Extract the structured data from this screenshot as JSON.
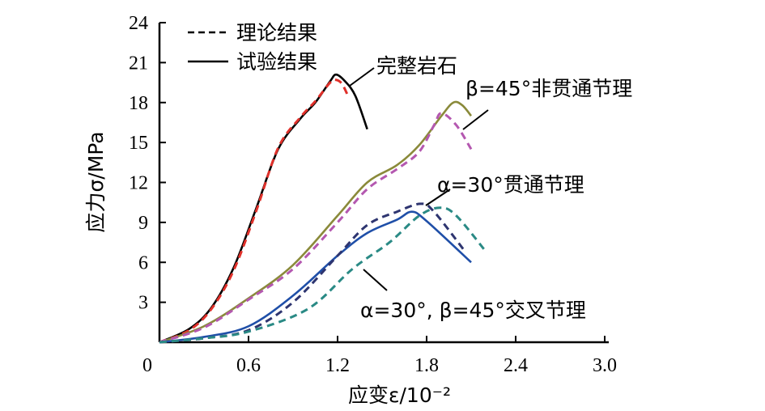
{
  "chart_data": {
    "type": "line",
    "xlabel": "应变ε/10⁻²",
    "ylabel": "应力σ/MPa",
    "xlim": [
      0,
      3.0
    ],
    "ylim": [
      0,
      24
    ],
    "xticks": [
      "0",
      "0.6",
      "1.2",
      "1.8",
      "2.4",
      "3.0"
    ],
    "yticks": [
      "3",
      "6",
      "9",
      "12",
      "15",
      "18",
      "21",
      "24"
    ],
    "grid": false,
    "legend": {
      "position": "top-left",
      "entries": [
        {
          "label": "理论结果",
          "style": "dashed"
        },
        {
          "label": "试验结果",
          "style": "solid"
        }
      ]
    },
    "annotations": [
      "完整岩石",
      "β=45°非贯通节理",
      "α=30°贯通节理",
      "α=30°, β=45°交叉节理"
    ],
    "series": [
      {
        "group": "完整岩石",
        "kind": "试验结果",
        "color": "#000000",
        "dashed": false,
        "x": [
          0,
          0.2,
          0.35,
          0.5,
          0.65,
          0.8,
          0.95,
          1.05,
          1.15,
          1.19,
          1.25,
          1.32,
          1.4
        ],
        "y": [
          0,
          1.0,
          2.6,
          5.6,
          10,
          14.5,
          16.8,
          18,
          19.6,
          20.1,
          19.6,
          18.5,
          16.0
        ]
      },
      {
        "group": "完整岩石",
        "kind": "理论结果",
        "color": "#e0302a",
        "dashed": true,
        "x": [
          0,
          0.2,
          0.35,
          0.5,
          0.65,
          0.8,
          0.95,
          1.05,
          1.15,
          1.19,
          1.23,
          1.27
        ],
        "y": [
          0,
          0.9,
          2.5,
          5.4,
          9.8,
          14.6,
          16.9,
          18.1,
          19.5,
          19.7,
          19.4,
          18.5
        ]
      },
      {
        "group": "β=45°非贯通节理",
        "kind": "试验结果",
        "color": "#8a8a3a",
        "dashed": false,
        "x": [
          0,
          0.3,
          0.6,
          0.9,
          1.2,
          1.4,
          1.6,
          1.75,
          1.9,
          1.98,
          2.04,
          2.1
        ],
        "y": [
          0,
          1.2,
          3.3,
          5.8,
          9.5,
          12,
          13.3,
          14.8,
          17,
          18,
          17.8,
          17
        ]
      },
      {
        "group": "β=45°非贯通节理",
        "kind": "理论结果",
        "color": "#b458b0",
        "dashed": true,
        "x": [
          0,
          0.3,
          0.6,
          0.9,
          1.2,
          1.4,
          1.6,
          1.75,
          1.85,
          1.9,
          2.0,
          2.1
        ],
        "y": [
          0,
          1.1,
          3.2,
          5.5,
          9.0,
          11.5,
          13.0,
          14.3,
          16.3,
          17.2,
          16.3,
          14.5
        ]
      },
      {
        "group": "α=30°贯通节理",
        "kind": "试验结果",
        "color": "#1f4fa8",
        "dashed": false,
        "x": [
          0,
          0.3,
          0.6,
          0.9,
          1.2,
          1.4,
          1.6,
          1.7,
          1.8,
          2.1
        ],
        "y": [
          0,
          0.4,
          1.2,
          3.5,
          6.5,
          8.2,
          9.2,
          9.8,
          9.1,
          6.0
        ]
      },
      {
        "group": "α=30°贯通节理",
        "kind": "理论结果",
        "color": "#2e3570",
        "dashed": true,
        "x": [
          0,
          0.3,
          0.6,
          0.9,
          1.2,
          1.4,
          1.6,
          1.76,
          1.85,
          2.06
        ],
        "y": [
          0,
          0.3,
          0.9,
          3.0,
          6.5,
          8.8,
          9.8,
          10.4,
          9.8,
          6.8
        ]
      },
      {
        "group": "α=30°, β=45°交叉节理",
        "kind": "理论结果",
        "color": "#2a8a85",
        "dashed": true,
        "x": [
          0,
          0.3,
          0.6,
          1.0,
          1.3,
          1.55,
          1.75,
          1.89,
          2.0,
          2.2
        ],
        "y": [
          0,
          0.3,
          0.8,
          2.5,
          5.5,
          7.5,
          9.5,
          10.1,
          9.5,
          6.8
        ]
      }
    ]
  }
}
